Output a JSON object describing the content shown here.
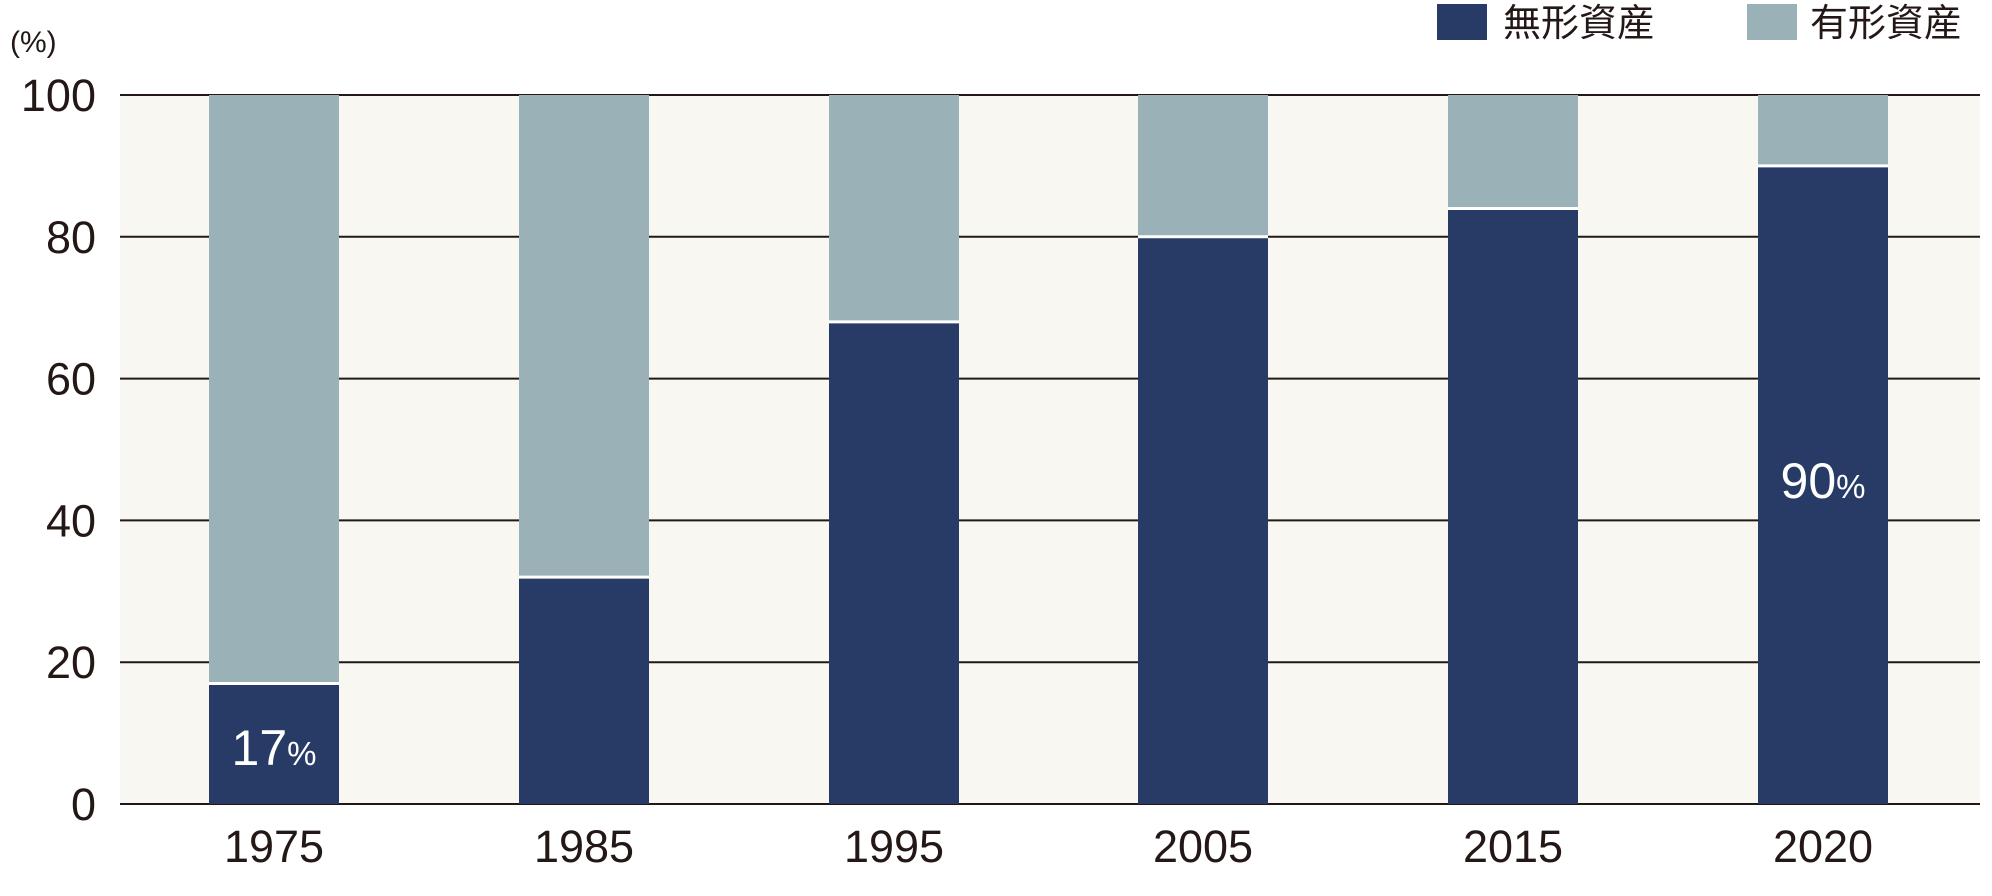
{
  "chart_data": {
    "type": "bar",
    "stacked": true,
    "y_unit_label": "(%)",
    "ylim": [
      0,
      100
    ],
    "yticks": [
      "0",
      "20",
      "40",
      "60",
      "80",
      "100"
    ],
    "categories": [
      "1975",
      "1985",
      "1995",
      "2005",
      "2015",
      "2020"
    ],
    "series": [
      {
        "name": "無形資産",
        "color": "#283a66",
        "values": [
          17,
          32,
          68,
          80,
          84,
          90
        ]
      },
      {
        "name": "有形資産",
        "color": "#9ab2b7",
        "values": [
          83,
          68,
          32,
          20,
          16,
          10
        ]
      }
    ],
    "annotations": [
      {
        "category": "1975",
        "series": "無形資産",
        "value": "17",
        "unit": "%"
      },
      {
        "category": "2020",
        "series": "無形資産",
        "value": "90",
        "unit": "%"
      }
    ],
    "legend_position": "top-right",
    "grid": true,
    "plot_background": "#f8f7f1",
    "grid_color": "#231815"
  }
}
